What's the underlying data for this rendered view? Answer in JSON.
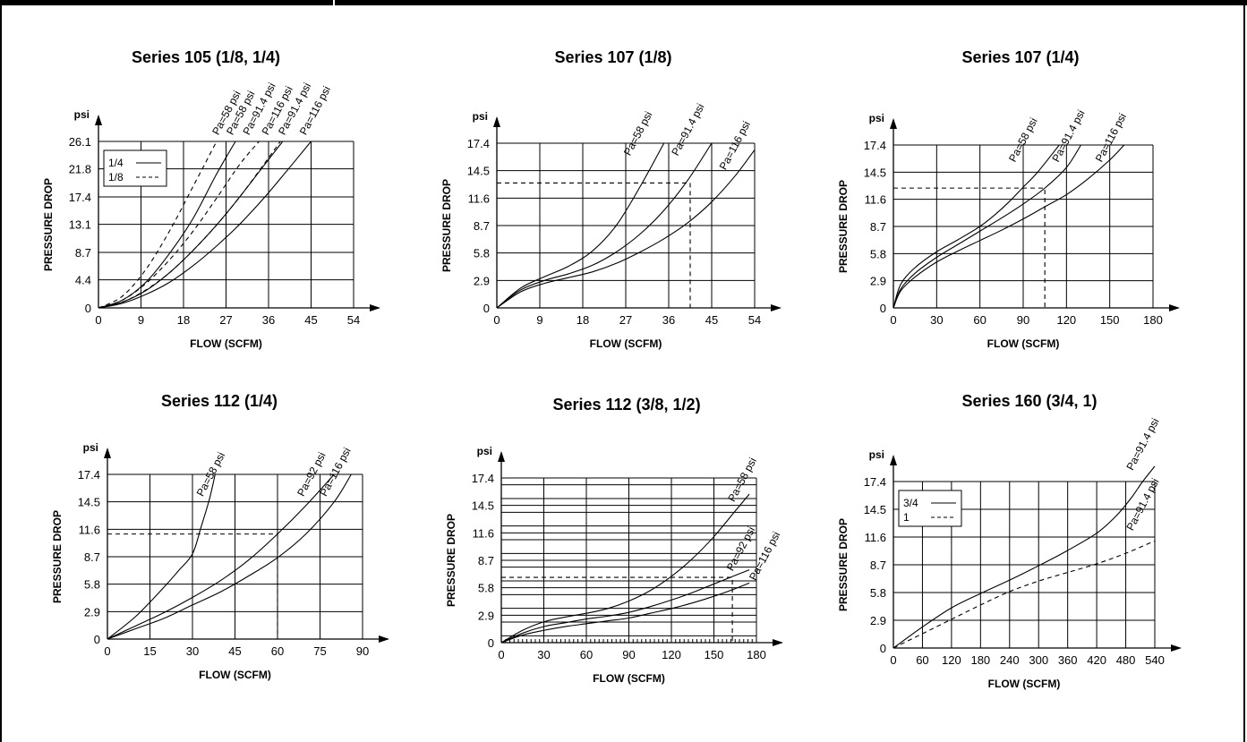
{
  "chart_data": [
    {
      "type": "line",
      "title": "Series 105 (1/8, 1/4)",
      "xlabel": "FLOW (SCFM)",
      "ylabel": "PRESSURE DROP",
      "yunit": "psi",
      "x_ticks": [
        0,
        9,
        18,
        27,
        36,
        45,
        54
      ],
      "y_ticks": [
        0,
        4.4,
        8.7,
        13.1,
        17.4,
        21.8,
        26.1
      ],
      "y_tick_labels": [
        "0",
        "4.4",
        "8.7",
        "13.1",
        "17.4",
        "21.8",
        "26.1"
      ],
      "xlim": [
        0,
        54
      ],
      "ylim": [
        0,
        26.1
      ],
      "grid": true,
      "legend": {
        "position": "top-left",
        "entries": [
          {
            "label": "1/4",
            "style": "solid"
          },
          {
            "label": "1/8",
            "style": "dashed"
          }
        ]
      },
      "series": [
        {
          "name": "Pa=58 psi",
          "style": "solid",
          "x": [
            0,
            5,
            10,
            15,
            20,
            25,
            29
          ],
          "y": [
            0,
            1.2,
            4.0,
            8.5,
            14.0,
            21.0,
            26.1
          ]
        },
        {
          "name": "Pa=91.4 psi",
          "style": "solid",
          "x": [
            0,
            5,
            10,
            15,
            20,
            25,
            30,
            35,
            39
          ],
          "y": [
            0,
            0.9,
            2.7,
            5.5,
            9.0,
            13.0,
            17.5,
            22.3,
            26.1
          ]
        },
        {
          "name": "Pa=116 psi",
          "style": "solid",
          "x": [
            0,
            5,
            10,
            15,
            20,
            25,
            30,
            35,
            40,
            45
          ],
          "y": [
            0,
            0.7,
            2.1,
            4.0,
            6.6,
            9.7,
            13.2,
            17.2,
            21.6,
            26.1
          ]
        },
        {
          "name": "Pa=58 psi",
          "style": "dashed",
          "x": [
            0,
            5,
            10,
            15,
            20,
            25
          ],
          "y": [
            0,
            1.8,
            6.0,
            12.0,
            19.0,
            26.1
          ]
        },
        {
          "name": "Pa=91.4 psi",
          "style": "dashed",
          "x": [
            0,
            5,
            10,
            15,
            20,
            25,
            30,
            34
          ],
          "y": [
            0,
            1.2,
            3.8,
            7.5,
            12.0,
            17.2,
            22.6,
            26.1
          ]
        },
        {
          "name": "Pa=116 psi",
          "style": "dashed",
          "x": [
            0,
            5,
            10,
            15,
            20,
            25,
            30,
            35,
            38.5
          ],
          "y": [
            0,
            0.9,
            2.8,
            5.5,
            9.0,
            13.0,
            17.5,
            22.5,
            26.1
          ]
        }
      ],
      "annotations": [
        {
          "text": "Pa=58 psi",
          "x": 26.5,
          "y": 27
        },
        {
          "text": "Pa=58 psi",
          "x": 29.5,
          "y": 27
        },
        {
          "text": "Pa=91.4 psi",
          "x": 33,
          "y": 27
        },
        {
          "text": "Pa=116 psi",
          "x": 37,
          "y": 27
        },
        {
          "text": "Pa=91.4 psi",
          "x": 40.5,
          "y": 27
        },
        {
          "text": "Pa=116 psi",
          "x": 45,
          "y": 27
        }
      ]
    },
    {
      "type": "line",
      "title": "Series 107 (1/8)",
      "xlabel": "FLOW (SCFM)",
      "ylabel": "PRESSURE DROP",
      "yunit": "psi",
      "x_ticks": [
        0,
        9,
        18,
        27,
        36,
        45,
        54
      ],
      "y_ticks": [
        0,
        2.9,
        5.8,
        8.7,
        11.6,
        14.5,
        17.4
      ],
      "y_tick_labels": [
        "0",
        "2.9",
        "5.8",
        "8.7",
        "11.6",
        "14.5",
        "17.4"
      ],
      "xlim": [
        0,
        54
      ],
      "ylim": [
        0,
        17.4
      ],
      "grid": true,
      "series": [
        {
          "name": "Pa=58 psi",
          "style": "solid",
          "x": [
            0,
            5,
            10,
            15,
            20,
            25,
            30,
            35
          ],
          "y": [
            0,
            2.1,
            3.3,
            4.4,
            6.0,
            8.7,
            12.8,
            17.4
          ]
        },
        {
          "name": "Pa=91.4 psi",
          "style": "solid",
          "x": [
            0,
            5,
            10,
            15,
            20,
            25,
            30,
            35,
            40,
            45
          ],
          "y": [
            0,
            1.9,
            2.9,
            3.6,
            4.5,
            5.9,
            7.8,
            10.3,
            13.5,
            17.4
          ]
        },
        {
          "name": "Pa=116 psi",
          "style": "solid",
          "x": [
            0,
            5,
            10,
            15,
            20,
            25,
            30,
            35,
            40,
            45,
            50,
            54
          ],
          "y": [
            0,
            1.7,
            2.6,
            3.2,
            3.8,
            4.7,
            5.9,
            7.3,
            9.0,
            11.2,
            14.0,
            16.7
          ]
        },
        {
          "name": "",
          "style": "dashed",
          "x": [
            0,
            40.5,
            40.5
          ],
          "y": [
            13.2,
            13.2,
            0
          ]
        }
      ],
      "annotations": [
        {
          "text": "Pa=58 psi",
          "x": 29,
          "y": 16
        },
        {
          "text": "Pa=91.4 psi",
          "x": 39,
          "y": 16
        },
        {
          "text": "Pa=116 psi",
          "x": 49,
          "y": 14.5
        }
      ]
    },
    {
      "type": "line",
      "title": "Series 107 (1/4)",
      "xlabel": "FLOW (SCFM)",
      "ylabel": "PRESSURE DROP",
      "yunit": "psi",
      "x_ticks": [
        0,
        30,
        60,
        90,
        120,
        150,
        180
      ],
      "y_ticks": [
        0,
        2.9,
        5.8,
        8.7,
        11.6,
        14.5,
        17.4
      ],
      "y_tick_labels": [
        "0",
        "2.9",
        "5.8",
        "8.7",
        "11.6",
        "14.5",
        "17.4"
      ],
      "xlim": [
        0,
        180
      ],
      "ylim": [
        0,
        17.4
      ],
      "grid": true,
      "series": [
        {
          "name": "Pa=58 psi",
          "style": "solid",
          "x": [
            0,
            5,
            15,
            30,
            45,
            60,
            70,
            80,
            90,
            100,
            115
          ],
          "y": [
            0,
            2.5,
            4.3,
            6.0,
            7.3,
            8.7,
            9.9,
            11.3,
            12.9,
            14.5,
            17.4
          ]
        },
        {
          "name": "Pa=91.4 psi",
          "style": "solid",
          "x": [
            0,
            5,
            15,
            30,
            45,
            60,
            75,
            90,
            105,
            120,
            130
          ],
          "y": [
            0,
            2.0,
            3.7,
            5.4,
            6.8,
            8.2,
            9.6,
            11.1,
            12.8,
            15.0,
            17.4
          ]
        },
        {
          "name": "Pa=116 psi",
          "style": "solid",
          "x": [
            0,
            5,
            15,
            30,
            45,
            60,
            75,
            90,
            105,
            120,
            135,
            150,
            160
          ],
          "y": [
            0,
            1.8,
            3.3,
            4.9,
            6.1,
            7.2,
            8.3,
            9.5,
            10.8,
            12.1,
            13.8,
            15.8,
            17.4
          ]
        },
        {
          "name": "",
          "style": "dashed",
          "x": [
            0,
            105,
            105
          ],
          "y": [
            12.8,
            12.8,
            0
          ]
        }
      ],
      "annotations": [
        {
          "text": "Pa=58 psi",
          "x": 88,
          "y": 15.5
        },
        {
          "text": "Pa=91.4 psi",
          "x": 118,
          "y": 15.5
        },
        {
          "text": "Pa=116 psi",
          "x": 148,
          "y": 15.5
        }
      ]
    },
    {
      "type": "line",
      "title": "Series 112 (1/4)",
      "xlabel": "FLOW (SCFM)",
      "ylabel": "PRESSURE DROP",
      "yunit": "psi",
      "x_ticks": [
        0,
        15,
        30,
        45,
        60,
        75,
        90
      ],
      "y_ticks": [
        0,
        2.9,
        5.8,
        8.7,
        11.6,
        14.5,
        17.4
      ],
      "y_tick_labels": [
        "0",
        "2.9",
        "5.8",
        "8.7",
        "11.6",
        "14.5",
        "17.4"
      ],
      "xlim": [
        0,
        90
      ],
      "ylim": [
        0,
        17.4
      ],
      "grid": true,
      "series": [
        {
          "name": "Pa=58 psi",
          "style": "solid",
          "x": [
            0,
            10,
            20,
            25,
            30,
            33,
            36,
            38
          ],
          "y": [
            0,
            2.4,
            5.5,
            7.2,
            9.0,
            11.8,
            14.8,
            17.4
          ]
        },
        {
          "name": "Pa=92 psi",
          "style": "solid",
          "x": [
            0,
            10,
            20,
            30,
            40,
            50,
            60,
            70,
            80
          ],
          "y": [
            0,
            1.4,
            2.8,
            4.4,
            6.2,
            8.4,
            11.1,
            14.1,
            17.4
          ]
        },
        {
          "name": "Pa=116 psi",
          "style": "solid",
          "x": [
            0,
            10,
            20,
            30,
            40,
            50,
            60,
            70,
            80,
            86
          ],
          "y": [
            0,
            1.1,
            2.2,
            3.6,
            5.0,
            6.7,
            8.6,
            11.1,
            14.5,
            17.4
          ]
        },
        {
          "name": "",
          "style": "dashed",
          "x": [
            0,
            60,
            60
          ],
          "y": [
            11.1,
            11.1,
            0
          ]
        }
      ],
      "annotations": [
        {
          "text": "Pa=58 psi",
          "x": 35.5,
          "y": 15
        },
        {
          "text": "Pa=92 psi",
          "x": 71,
          "y": 15
        },
        {
          "text": "Pa=116 psi",
          "x": 79,
          "y": 15
        }
      ]
    },
    {
      "type": "line",
      "title": "Series 112 (3/8, 1/2)",
      "xlabel": "FLOW (SCFM)",
      "ylabel": "PRESSURE DROP",
      "yunit": "psi",
      "x_ticks": [
        0,
        30,
        60,
        90,
        120,
        150,
        180
      ],
      "y_ticks": [
        0,
        2.9,
        5.8,
        8.7,
        11.6,
        14.5,
        17.4
      ],
      "y_tick_labels": [
        "0",
        "2.9",
        "5.8",
        "8.7",
        "11.6",
        "14.5",
        "17.4"
      ],
      "xlim": [
        0,
        180
      ],
      "ylim": [
        0,
        17.4
      ],
      "grid": true,
      "series": [
        {
          "name": "Pa=58 psi",
          "style": "solid",
          "x": [
            0,
            15,
            30,
            45,
            60,
            75,
            90,
            105,
            120,
            135,
            150,
            165,
            175
          ],
          "y": [
            0,
            1.3,
            2.2,
            2.7,
            3.1,
            3.6,
            4.4,
            5.5,
            7.0,
            8.9,
            11.2,
            13.9,
            15.7
          ]
        },
        {
          "name": "Pa=92 psi",
          "style": "solid",
          "x": [
            0,
            15,
            30,
            45,
            60,
            75,
            90,
            105,
            120,
            135,
            150,
            165,
            175
          ],
          "y": [
            0,
            1.0,
            1.7,
            2.1,
            2.5,
            2.8,
            3.2,
            3.8,
            4.5,
            5.3,
            6.2,
            7.1,
            7.7
          ]
        },
        {
          "name": "Pa=116 psi",
          "style": "solid",
          "x": [
            0,
            15,
            30,
            45,
            60,
            75,
            90,
            105,
            120,
            135,
            150,
            165,
            175
          ],
          "y": [
            0,
            0.8,
            1.3,
            1.7,
            2.0,
            2.3,
            2.6,
            3.1,
            3.6,
            4.2,
            4.9,
            5.7,
            6.3
          ]
        },
        {
          "name": "",
          "style": "dashed",
          "x": [
            0,
            163,
            163
          ],
          "y": [
            6.9,
            6.9,
            0
          ]
        }
      ],
      "annotations": [
        {
          "text": "Pa=58 psi",
          "x": 168,
          "y": 14.8
        },
        {
          "text": "Pa=92 psi",
          "x": 167,
          "y": 7.5
        },
        {
          "text": "Pa=116 psi",
          "x": 183,
          "y": 6.5
        }
      ]
    },
    {
      "type": "line",
      "title": "Series 160 (3/4, 1)",
      "xlabel": "FLOW (SCFM)",
      "ylabel": "PRESSURE DROP",
      "yunit": "psi",
      "x_ticks": [
        0,
        60,
        120,
        180,
        240,
        300,
        360,
        420,
        480,
        540
      ],
      "y_ticks": [
        0,
        2.9,
        5.8,
        8.7,
        11.6,
        14.5,
        17.4
      ],
      "y_tick_labels": [
        "0",
        "2.9",
        "5.8",
        "8.7",
        "11.6",
        "14.5",
        "17.4"
      ],
      "xlim": [
        0,
        540
      ],
      "ylim": [
        0,
        17.4
      ],
      "grid": true,
      "legend": {
        "position": "top-left",
        "entries": [
          {
            "label": "3/4",
            "style": "solid"
          },
          {
            "label": "1",
            "style": "dashed"
          }
        ]
      },
      "series": [
        {
          "name": "Pa=91.4 psi",
          "style": "solid",
          "x": [
            0,
            60,
            120,
            180,
            240,
            300,
            360,
            420,
            460,
            490,
            515,
            540
          ],
          "y": [
            0,
            2.2,
            4.2,
            5.7,
            7.1,
            8.6,
            10.2,
            12.0,
            13.8,
            15.6,
            17.4,
            19.0
          ]
        },
        {
          "name": "Pa=91.4 psi",
          "style": "dashed",
          "x": [
            0,
            60,
            120,
            180,
            240,
            300,
            360,
            420,
            480,
            540
          ],
          "y": [
            0,
            1.5,
            3.0,
            4.5,
            5.9,
            7.0,
            7.9,
            8.8,
            9.9,
            11.2
          ]
        }
      ],
      "annotations": [
        {
          "text": "Pa=91.4 psi",
          "x": 505,
          "y": 18.5
        },
        {
          "text": "Pa=91.4 psi",
          "x": 505,
          "y": 12.2
        }
      ]
    }
  ]
}
